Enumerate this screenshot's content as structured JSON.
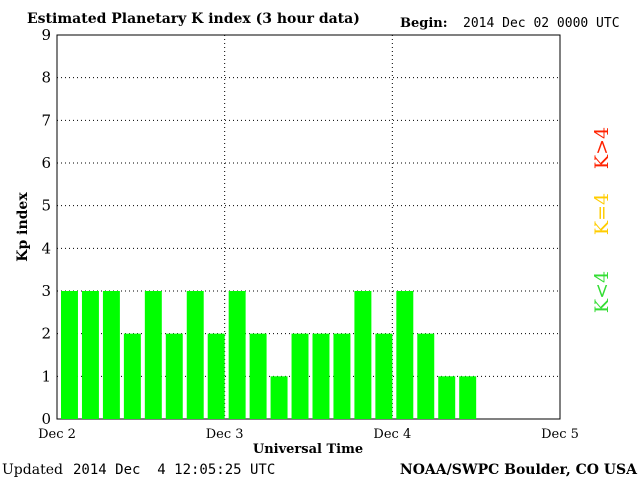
{
  "chart_data": {
    "type": "bar",
    "title": "Estimated Planetary K index (3 hour data)",
    "begin_label": "Begin:",
    "begin_value": "2014 Dec 02 0000 UTC",
    "ylabel": "Kp index",
    "xlabel": "Universal Time",
    "ylim": [
      0,
      9
    ],
    "yticks": [
      "0",
      "1",
      "2",
      "3",
      "4",
      "5",
      "6",
      "7",
      "8",
      "9"
    ],
    "x_tick_labels": [
      "Dec 2",
      "Dec 3",
      "Dec 4",
      "Dec 5"
    ],
    "grid": true,
    "values": [
      3,
      3,
      3,
      2,
      3,
      2,
      3,
      2,
      3,
      2,
      1,
      2,
      2,
      2,
      3,
      2,
      3,
      2,
      1,
      1
    ],
    "bar_color": "#00ff00",
    "legend": [
      {
        "label": "K<4",
        "color": "#33dd33"
      },
      {
        "label": "K=4",
        "color": "#ffcc00"
      },
      {
        "label": "K>4",
        "color": "#ff2200"
      }
    ]
  },
  "footer": {
    "updated_label": "Updated",
    "updated_value": "2014 Dec  4 12:05:25 UTC",
    "source": "NOAA/SWPC Boulder, CO USA"
  }
}
